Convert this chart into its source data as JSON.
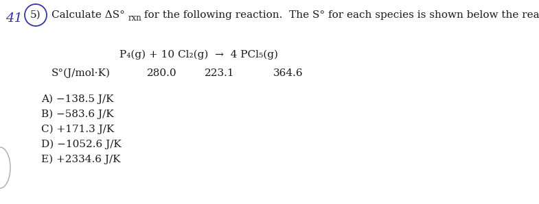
{
  "bg_color": "#ffffff",
  "number_label": "41",
  "question_number": "5)",
  "header_text": "Calculate ΔS°",
  "header_text2": "rxn",
  "header_text3": " for the following reaction.  The S° for each species is shown below the reaction.",
  "reaction_line": "P₄(g) + 10 Cl₂(g)  →  4 PCl₅(g)",
  "s_label": "S°(J/mol·K)",
  "s_values": [
    "280.0",
    "223.1",
    "364.6"
  ],
  "answer_choices": [
    "A) −138.5 J/K",
    "B) −583.6 J/K",
    "C) +171.3 J/K",
    "D) −1052.6 J/K",
    "E) +2334.6 J/K"
  ],
  "font_size_header": 11.0,
  "font_size_body": 11.0,
  "font_size_number": 14,
  "text_color": "#1a1a1a",
  "circle_color": "#3333aa",
  "number_color": "#3333aa"
}
